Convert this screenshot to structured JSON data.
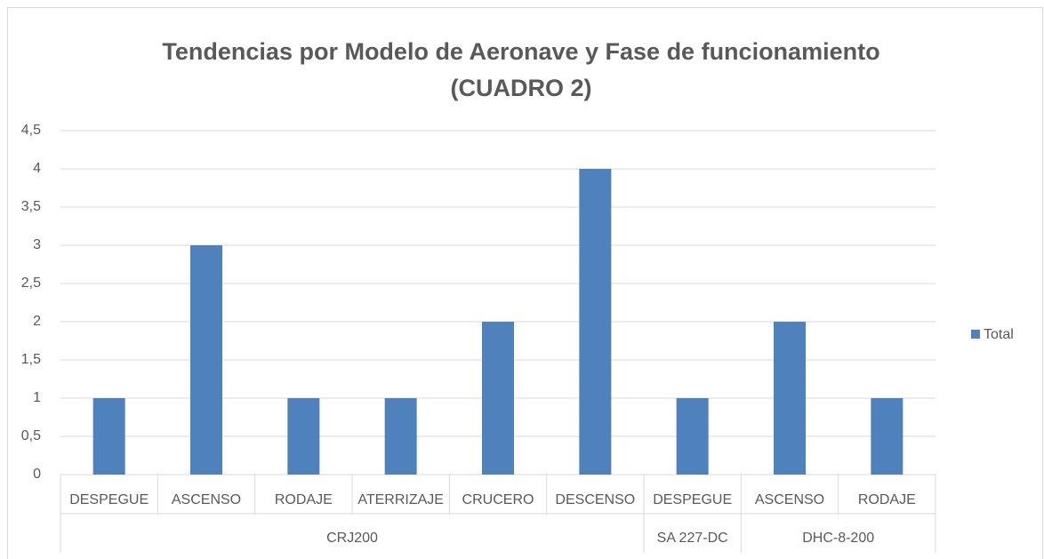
{
  "chart_data": {
    "type": "bar",
    "title": [
      "Tendencias por Modelo de Aeronave y Fase de funcionamiento",
      "(CUADRO 2)"
    ],
    "series": [
      {
        "name": "Total",
        "color": "#4f81bd"
      }
    ],
    "groups": [
      {
        "name": "CRJ200",
        "categories": [
          "DESPEGUE",
          "ASCENSO",
          "RODAJE",
          "ATERRIZAJE",
          "CRUCERO",
          "DESCENSO"
        ],
        "values": [
          1,
          3,
          1,
          1,
          2,
          4
        ]
      },
      {
        "name": "SA 227-DC",
        "categories": [
          "DESPEGUE"
        ],
        "values": [
          1
        ]
      },
      {
        "name": "DHC-8-200",
        "categories": [
          "ASCENSO",
          "RODAJE"
        ],
        "values": [
          2,
          1
        ]
      }
    ],
    "ylim": [
      0,
      4.5
    ],
    "yticks": [
      0,
      {
        "value": 0.5,
        "label": "0,5"
      },
      1,
      {
        "value": 1.5,
        "label": "1,5"
      },
      2,
      {
        "value": 2.5,
        "label": "2,5"
      },
      3,
      {
        "value": 3.5,
        "label": "3,5"
      },
      4,
      {
        "value": 4.5,
        "label": "4,5"
      }
    ],
    "grid": true,
    "legend": "right"
  }
}
